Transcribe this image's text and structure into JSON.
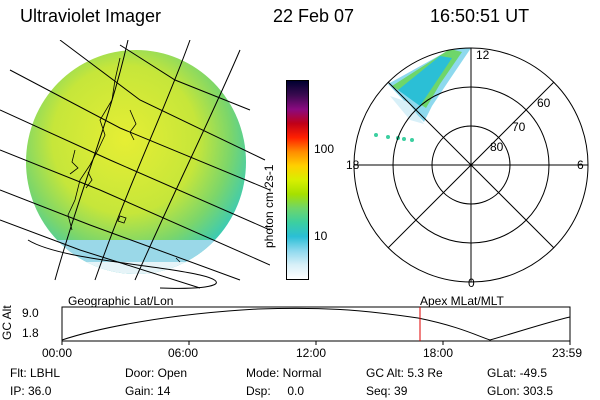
{
  "header": {
    "instrument": "Ultraviolet Imager",
    "date": "22 Feb 07",
    "time": "16:50:51 UT"
  },
  "colorbar": {
    "unit_label": "photon cm-2s-1",
    "ticks": [
      "100",
      "10"
    ],
    "scale": "log",
    "colors": [
      "#000030",
      "#3a0a50",
      "#8a0a80",
      "#c00018",
      "#ff2000",
      "#ff8c00",
      "#ffd000",
      "#d8ef00",
      "#a6e000",
      "#6ed66a",
      "#3ccfa0",
      "#2bbfd6",
      "#8ed9ee",
      "#d8f0f8",
      "#ffffff"
    ]
  },
  "geo_panel": {
    "label": "Geographic Lat/Lon"
  },
  "polar_panel": {
    "label": "Apex MLat/MLT",
    "lat_labels": [
      "60",
      "70",
      "80"
    ],
    "mlt_labels": {
      "top": "12",
      "bottom": "0",
      "left": "18",
      "right": "6"
    }
  },
  "altitude_plot": {
    "ylabel": "GC Alt",
    "yticks": [
      "9.0",
      "1.8"
    ],
    "xticks": [
      "00:00",
      "06:00",
      "12:00",
      "18:00",
      "23:59"
    ],
    "marker_color": "#e00000"
  },
  "info": {
    "row1": {
      "flt": "Flt: LBHL",
      "door": "Door: Open",
      "mode": "Mode: Normal",
      "gc_alt": "GC Alt: 5.3 Re",
      "glat": "GLat: -49.5"
    },
    "row2": {
      "ip": "IP: 36.0",
      "gain": "Gain: 14",
      "dsp": "Dsp:     0.0",
      "seq": "Seq: 39",
      "glon": "GLon: 303.5"
    }
  }
}
